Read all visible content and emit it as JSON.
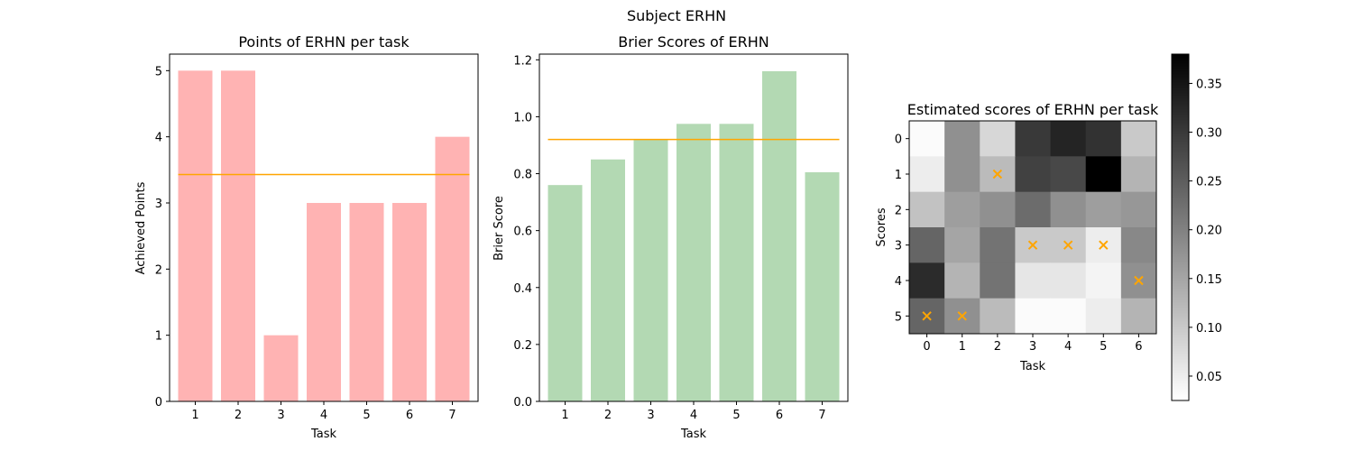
{
  "figure": {
    "suptitle": "Subject ERHN"
  },
  "chart_data": [
    {
      "type": "bar",
      "title": "Points of ERHN per task",
      "xlabel": "Task",
      "ylabel": "Achieved Points",
      "categories": [
        "1",
        "2",
        "3",
        "4",
        "5",
        "6",
        "7"
      ],
      "values": [
        5,
        5,
        1,
        3,
        3,
        3,
        4
      ],
      "mean_line": 3.43,
      "ylim": [
        0,
        5.25
      ],
      "yticks": [
        0,
        1,
        2,
        3,
        4,
        5
      ],
      "bar_color": "#ffb3b3",
      "mean_line_color": "#ffa500"
    },
    {
      "type": "bar",
      "title": "Brier Scores of ERHN",
      "xlabel": "Task",
      "ylabel": "Brier Score",
      "categories": [
        "1",
        "2",
        "3",
        "4",
        "5",
        "6",
        "7"
      ],
      "values": [
        0.76,
        0.85,
        0.92,
        0.975,
        0.975,
        1.16,
        0.805
      ],
      "mean_line": 0.92,
      "ylim": [
        0,
        1.22
      ],
      "yticks": [
        0.0,
        0.2,
        0.4,
        0.6,
        0.8,
        1.0,
        1.2
      ],
      "bar_color": "#b3d9b3",
      "mean_line_color": "#ffa500"
    },
    {
      "type": "heatmap",
      "title": "Estimated scores of ERHN per task",
      "xlabel": "Task",
      "ylabel": "Scores",
      "xticks": [
        0,
        1,
        2,
        3,
        4,
        5,
        6
      ],
      "yticks": [
        0,
        1,
        2,
        3,
        4,
        5
      ],
      "matrix": [
        [
          0.03,
          0.18,
          0.08,
          0.3,
          0.33,
          0.31,
          0.1
        ],
        [
          0.05,
          0.18,
          0.12,
          0.29,
          0.28,
          0.38,
          0.13
        ],
        [
          0.11,
          0.16,
          0.18,
          0.23,
          0.18,
          0.16,
          0.17
        ],
        [
          0.24,
          0.15,
          0.22,
          0.1,
          0.1,
          0.05,
          0.19
        ],
        [
          0.32,
          0.13,
          0.22,
          0.06,
          0.06,
          0.04,
          0.18
        ],
        [
          0.24,
          0.18,
          0.12,
          0.03,
          0.03,
          0.05,
          0.13
        ]
      ],
      "markers": [
        {
          "x": 2,
          "y": 1
        },
        {
          "x": 3,
          "y": 3
        },
        {
          "x": 4,
          "y": 3
        },
        {
          "x": 5,
          "y": 3
        },
        {
          "x": 6,
          "y": 4
        },
        {
          "x": 0,
          "y": 5
        },
        {
          "x": 1,
          "y": 5
        }
      ],
      "marker_color": "#ffa500",
      "colormap": "gray_r",
      "vmin": 0.025,
      "vmax": 0.38,
      "colorbar_ticks": [
        0.05,
        0.1,
        0.15,
        0.2,
        0.25,
        0.3,
        0.35
      ]
    }
  ]
}
